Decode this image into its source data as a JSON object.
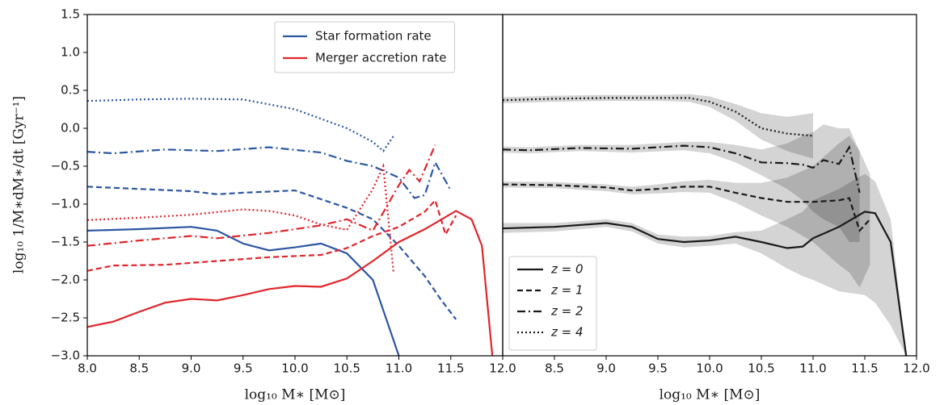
{
  "chart_data": [
    {
      "type": "line",
      "xlabel": "log₁₀ M∗ [M⊙]",
      "ylabel": "log₁₀ 1/M∗dM∗/dt [Gyr⁻¹]",
      "xlim": [
        8.0,
        12.0
      ],
      "ylim": [
        -3.0,
        1.5
      ],
      "xticks": [
        {
          "value": 8.0,
          "label": "8.0"
        },
        {
          "value": 8.5,
          "label": "8.5"
        },
        {
          "value": 9.0,
          "label": "9.0"
        },
        {
          "value": 9.5,
          "label": "9.5"
        },
        {
          "value": 10.0,
          "label": "10.0"
        },
        {
          "value": 10.5,
          "label": "10.5"
        },
        {
          "value": 11.0,
          "label": "11.0"
        },
        {
          "value": 11.5,
          "label": "11.5"
        },
        {
          "value": 12.0,
          "label": "12.0"
        }
      ],
      "yticks": [
        {
          "value": 1.5,
          "label": "1.5"
        },
        {
          "value": 1.0,
          "label": "1.0"
        },
        {
          "value": 0.5,
          "label": "0.5"
        },
        {
          "value": 0.0,
          "label": "0.0"
        },
        {
          "value": -0.5,
          "label": "−0.5"
        },
        {
          "value": -1.0,
          "label": "−1.0"
        },
        {
          "value": -1.5,
          "label": "−1.5"
        },
        {
          "value": -2.0,
          "label": "−2.0"
        },
        {
          "value": -2.5,
          "label": "−2.5"
        },
        {
          "value": -3.0,
          "label": "−3.0"
        }
      ],
      "legend": {
        "position": "upper right",
        "entries": [
          {
            "label": "Star formation rate",
            "color": "#2b56a3"
          },
          {
            "label": "Merger accretion rate",
            "color": "#e0252b"
          }
        ]
      },
      "series": [
        {
          "color": "#2b56a3",
          "linestyle": "solid",
          "x": [
            8.0,
            8.5,
            9.0,
            9.25,
            9.5,
            9.75,
            10.0,
            10.25,
            10.5,
            10.75,
            11.0
          ],
          "values": [
            -1.35,
            -1.33,
            -1.3,
            -1.35,
            -1.52,
            -1.61,
            -1.57,
            -1.52,
            -1.65,
            -2.0,
            -3.0
          ]
        },
        {
          "color": "#2b56a3",
          "linestyle": "dashed",
          "x": [
            8.0,
            8.5,
            9.0,
            9.25,
            9.5,
            10.0,
            10.5,
            10.75,
            11.0,
            11.25,
            11.4,
            11.55
          ],
          "values": [
            -0.77,
            -0.8,
            -0.83,
            -0.87,
            -0.85,
            -0.82,
            -1.05,
            -1.2,
            -1.55,
            -1.95,
            -2.25,
            -2.52
          ]
        },
        {
          "color": "#2b56a3",
          "linestyle": "dashdot",
          "x": [
            8.0,
            8.25,
            8.75,
            9.25,
            9.75,
            10.25,
            10.5,
            10.75,
            11.0,
            11.15,
            11.25,
            11.35,
            11.5
          ],
          "values": [
            -0.31,
            -0.33,
            -0.28,
            -0.3,
            -0.25,
            -0.32,
            -0.43,
            -0.5,
            -0.65,
            -0.92,
            -0.88,
            -0.45,
            -0.82
          ]
        },
        {
          "color": "#2b56a3",
          "linestyle": "dotted",
          "x": [
            8.0,
            8.5,
            9.0,
            9.5,
            10.0,
            10.5,
            10.75,
            10.85,
            10.95
          ],
          "values": [
            0.36,
            0.38,
            0.39,
            0.38,
            0.25,
            0.0,
            -0.18,
            -0.3,
            -0.1
          ]
        },
        {
          "color": "#e0252b",
          "linestyle": "solid",
          "x": [
            8.0,
            8.25,
            8.5,
            8.75,
            9.0,
            9.25,
            9.5,
            9.75,
            10.0,
            10.25,
            10.5,
            10.75,
            11.0,
            11.25,
            11.55,
            11.7,
            11.8,
            11.9
          ],
          "values": [
            -2.62,
            -2.55,
            -2.42,
            -2.3,
            -2.25,
            -2.27,
            -2.2,
            -2.12,
            -2.08,
            -2.09,
            -1.98,
            -1.75,
            -1.5,
            -1.33,
            -1.09,
            -1.2,
            -1.55,
            -3.0
          ]
        },
        {
          "color": "#e0252b",
          "linestyle": "dashed",
          "x": [
            8.0,
            8.25,
            8.75,
            9.25,
            9.75,
            10.25,
            10.5,
            10.75,
            11.0,
            11.25,
            11.35,
            11.45,
            11.55
          ],
          "values": [
            -1.88,
            -1.81,
            -1.8,
            -1.75,
            -1.7,
            -1.67,
            -1.58,
            -1.42,
            -1.3,
            -1.1,
            -0.95,
            -1.4,
            -1.15
          ]
        },
        {
          "color": "#e0252b",
          "linestyle": "dashdot",
          "x": [
            8.0,
            8.5,
            9.0,
            9.25,
            9.75,
            10.25,
            10.5,
            10.75,
            11.0,
            11.1,
            11.2,
            11.35
          ],
          "values": [
            -1.55,
            -1.48,
            -1.42,
            -1.45,
            -1.38,
            -1.28,
            -1.2,
            -1.35,
            -0.75,
            -0.55,
            -0.7,
            -0.22
          ]
        },
        {
          "color": "#e0252b",
          "linestyle": "dotted",
          "x": [
            8.0,
            8.5,
            9.0,
            9.5,
            9.75,
            10.0,
            10.25,
            10.5,
            10.75,
            10.85,
            10.95
          ],
          "values": [
            -1.21,
            -1.18,
            -1.14,
            -1.07,
            -1.09,
            -1.15,
            -1.27,
            -1.34,
            -0.8,
            -0.5,
            -1.92
          ]
        }
      ]
    },
    {
      "type": "band",
      "xlabel": "log₁₀ M∗ [M⊙]",
      "xlim": [
        8.0,
        12.0
      ],
      "ylim": [
        -3.0,
        1.5
      ],
      "xticks": [
        {
          "value": 8.5,
          "label": "8.5"
        },
        {
          "value": 9.0,
          "label": "9.0"
        },
        {
          "value": 9.5,
          "label": "9.5"
        },
        {
          "value": 10.0,
          "label": "10.0"
        },
        {
          "value": 10.5,
          "label": "10.5"
        },
        {
          "value": 11.0,
          "label": "11.0"
        },
        {
          "value": 11.5,
          "label": "11.5"
        },
        {
          "value": 12.0,
          "label": "12.0"
        }
      ],
      "legend": {
        "position": "lower left"
      },
      "series": [
        {
          "name": "z = 0",
          "color": "#1a1a1a",
          "linestyle": "solid",
          "x": [
            8.0,
            8.5,
            9.0,
            9.25,
            9.5,
            9.75,
            10.0,
            10.25,
            10.5,
            10.75,
            10.9,
            11.0,
            11.25,
            11.5,
            11.6,
            11.75,
            11.9
          ],
          "values": [
            -1.32,
            -1.3,
            -1.25,
            -1.3,
            -1.46,
            -1.5,
            -1.48,
            -1.43,
            -1.5,
            -1.58,
            -1.56,
            -1.45,
            -1.3,
            -1.1,
            -1.12,
            -1.5,
            -3.0
          ],
          "upper": [
            -1.25,
            -1.25,
            -1.2,
            -1.25,
            -1.4,
            -1.43,
            -1.42,
            -1.37,
            -1.35,
            -1.2,
            -1.1,
            -0.95,
            -0.8,
            -0.6,
            -0.7,
            -1.2,
            -3.0
          ],
          "lower": [
            -1.38,
            -1.36,
            -1.3,
            -1.36,
            -1.52,
            -1.57,
            -1.55,
            -1.52,
            -1.65,
            -1.85,
            -1.95,
            -2.0,
            -2.15,
            -2.2,
            -2.3,
            -2.6,
            -3.0
          ]
        },
        {
          "name": "z = 1",
          "color": "#1a1a1a",
          "linestyle": "dashed",
          "x": [
            8.0,
            8.5,
            9.0,
            9.25,
            9.5,
            9.75,
            10.0,
            10.25,
            10.5,
            10.75,
            11.0,
            11.25,
            11.35,
            11.45,
            11.55
          ],
          "values": [
            -0.74,
            -0.75,
            -0.78,
            -0.82,
            -0.8,
            -0.77,
            -0.77,
            -0.85,
            -0.92,
            -0.97,
            -0.97,
            -0.95,
            -0.92,
            -1.35,
            -1.2
          ],
          "upper": [
            -0.7,
            -0.71,
            -0.74,
            -0.77,
            -0.74,
            -0.7,
            -0.68,
            -0.72,
            -0.72,
            -0.65,
            -0.5,
            -0.2,
            -0.1,
            -0.3,
            -0.6
          ],
          "lower": [
            -0.78,
            -0.79,
            -0.83,
            -0.87,
            -0.86,
            -0.84,
            -0.85,
            -0.98,
            -1.15,
            -1.3,
            -1.5,
            -1.8,
            -1.9,
            -2.1,
            -1.8
          ]
        },
        {
          "name": "z = 2",
          "color": "#1a1a1a",
          "linestyle": "dashdot",
          "x": [
            8.0,
            8.25,
            8.75,
            9.25,
            9.75,
            10.0,
            10.25,
            10.5,
            10.75,
            10.9,
            11.0,
            11.1,
            11.25,
            11.35,
            11.45
          ],
          "values": [
            -0.28,
            -0.29,
            -0.26,
            -0.27,
            -0.23,
            -0.25,
            -0.33,
            -0.45,
            -0.46,
            -0.48,
            -0.52,
            -0.42,
            -0.47,
            -0.25,
            -0.85
          ],
          "upper": [
            -0.24,
            -0.25,
            -0.22,
            -0.22,
            -0.18,
            -0.18,
            -0.22,
            -0.28,
            -0.2,
            -0.1,
            -0.05,
            0.05,
            0.0,
            0.0,
            -0.3
          ],
          "lower": [
            -0.32,
            -0.33,
            -0.3,
            -0.32,
            -0.29,
            -0.33,
            -0.45,
            -0.62,
            -0.8,
            -0.95,
            -1.1,
            -1.2,
            -1.3,
            -1.5,
            -1.5
          ]
        },
        {
          "name": "z = 4",
          "color": "#1a1a1a",
          "linestyle": "dotted",
          "x": [
            8.0,
            8.5,
            9.0,
            9.5,
            9.8,
            10.0,
            10.25,
            10.5,
            10.75,
            11.0
          ],
          "values": [
            0.37,
            0.39,
            0.4,
            0.4,
            0.4,
            0.35,
            0.22,
            0.0,
            -0.07,
            -0.1
          ],
          "upper": [
            0.41,
            0.43,
            0.44,
            0.44,
            0.45,
            0.42,
            0.32,
            0.2,
            0.15,
            0.2
          ],
          "lower": [
            0.33,
            0.35,
            0.36,
            0.36,
            0.35,
            0.28,
            0.1,
            -0.15,
            -0.3,
            -0.4
          ]
        }
      ]
    }
  ]
}
